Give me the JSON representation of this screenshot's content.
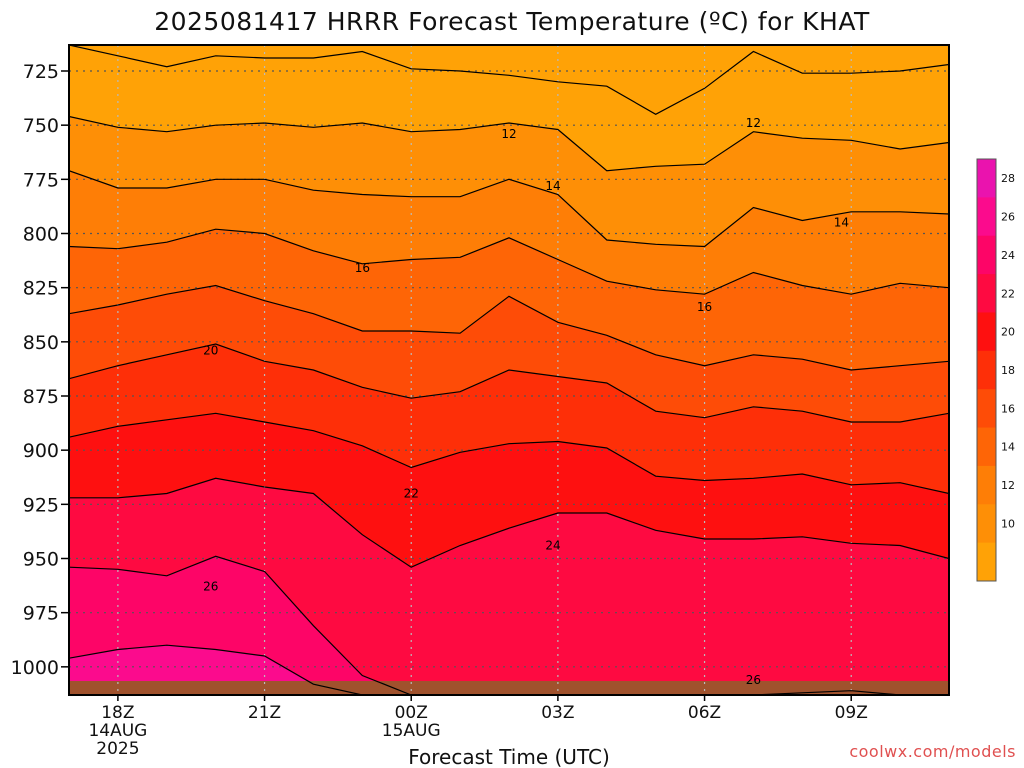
{
  "chart_data": {
    "type": "heatmap",
    "title": "2025081417 HRRR Forecast Temperature (ºC) for KHAT",
    "xlabel": "Forecast Time (UTC)",
    "ylabel": "",
    "y_axis": {
      "unit": "hPa",
      "inverted": true,
      "range": [
        1013,
        713
      ],
      "ticks": [
        "725",
        "750",
        "775",
        "800",
        "825",
        "850",
        "875",
        "900",
        "925",
        "950",
        "975",
        "1000"
      ]
    },
    "x_axis": {
      "range_hours": [
        17,
        35
      ],
      "ticks": [
        {
          "hour": 18,
          "lines": [
            "18Z",
            "14AUG",
            "2025"
          ]
        },
        {
          "hour": 21,
          "lines": [
            "21Z"
          ]
        },
        {
          "hour": 24,
          "lines": [
            "00Z",
            "15AUG"
          ]
        },
        {
          "hour": 27,
          "lines": [
            "03Z"
          ]
        },
        {
          "hour": 30,
          "lines": [
            "06Z"
          ]
        },
        {
          "hour": 33,
          "lines": [
            "09Z"
          ]
        }
      ]
    },
    "grid": true,
    "surface_band_color": "#a0522d",
    "levels": [
      {
        "t": 28,
        "color": "#ea13ae"
      },
      {
        "t": 26,
        "color": "#fb0b8d"
      },
      {
        "t": 24,
        "color": "#fd0567"
      },
      {
        "t": 22,
        "color": "#fe0a41"
      },
      {
        "t": 20,
        "color": "#fe1010"
      },
      {
        "t": 18,
        "color": "#fe2f08"
      },
      {
        "t": 16,
        "color": "#fe4c07"
      },
      {
        "t": 14,
        "color": "#fe6506"
      },
      {
        "t": 12,
        "color": "#fe7e06"
      },
      {
        "t": 10,
        "color": "#fe8f06"
      },
      {
        "t": 8,
        "color": "#ffa206"
      }
    ],
    "hours": [
      17,
      18,
      19,
      20,
      21,
      22,
      23,
      24,
      25,
      26,
      27,
      28,
      29,
      30,
      31,
      32,
      33,
      34,
      35
    ],
    "isotherms": [
      {
        "t": 8,
        "p": [
          713,
          718,
          723,
          718,
          719,
          719,
          716,
          724,
          725,
          727,
          730,
          732,
          745,
          733,
          716,
          726,
          726,
          725,
          722
        ]
      },
      {
        "t": 10,
        "p": [
          746,
          751,
          753,
          750,
          749,
          751,
          749,
          753,
          752,
          749,
          752,
          771,
          769,
          768,
          753,
          756,
          757,
          761,
          758
        ]
      },
      {
        "t": 12,
        "p": [
          771,
          779,
          779,
          775,
          775,
          780,
          782,
          783,
          783,
          775,
          782,
          803,
          805,
          806,
          788,
          794,
          790,
          790,
          791
        ]
      },
      {
        "t": 14,
        "p": [
          806,
          807,
          804,
          798,
          800,
          808,
          814,
          812,
          811,
          802,
          812,
          822,
          826,
          828,
          818,
          824,
          828,
          823,
          825
        ]
      },
      {
        "t": 16,
        "p": [
          837,
          833,
          828,
          824,
          831,
          837,
          845,
          845,
          846,
          829,
          841,
          847,
          856,
          861,
          856,
          858,
          863,
          861,
          859
        ]
      },
      {
        "t": 18,
        "p": [
          867,
          861,
          856,
          851,
          859,
          863,
          871,
          876,
          873,
          863,
          866,
          869,
          882,
          885,
          880,
          882,
          887,
          887,
          883
        ]
      },
      {
        "t": 20,
        "p": [
          894,
          889,
          886,
          883,
          887,
          891,
          898,
          908,
          901,
          897,
          896,
          899,
          912,
          914,
          913,
          911,
          916,
          915,
          920
        ]
      },
      {
        "t": 22,
        "p": [
          922,
          922,
          920,
          913,
          917,
          920,
          939,
          954,
          944,
          936,
          929,
          929,
          937,
          941,
          941,
          940,
          943,
          944,
          950
        ]
      },
      {
        "t": 24,
        "p": [
          954,
          955,
          958,
          949,
          956,
          981,
          1004,
          1013,
          1013,
          1013,
          1013,
          1013,
          1013,
          1013,
          1013,
          1012,
          1011,
          1013,
          1013
        ]
      },
      {
        "t": 26,
        "p": [
          996,
          992,
          990,
          992,
          995,
          1008,
          1013,
          1013,
          1013,
          1013,
          1013,
          1013,
          1013,
          1013,
          1013,
          1013,
          1013,
          1013,
          1013
        ]
      },
      {
        "t": 28,
        "p": [
          1013,
          1013,
          1013,
          1013,
          1013,
          1013,
          1013,
          1013,
          1013,
          1013,
          1013,
          1013,
          1013,
          1013,
          1013,
          1013,
          1013,
          1013,
          1013
        ]
      }
    ],
    "contour_labels": [
      {
        "text": "12",
        "hour": 26.0,
        "p": 754
      },
      {
        "text": "12",
        "hour": 31.0,
        "p": 749
      },
      {
        "text": "14",
        "hour": 26.9,
        "p": 778
      },
      {
        "text": "14",
        "hour": 32.8,
        "p": 795
      },
      {
        "text": "16",
        "hour": 23.0,
        "p": 816
      },
      {
        "text": "16",
        "hour": 30.0,
        "p": 834
      },
      {
        "text": "20",
        "hour": 19.9,
        "p": 854
      },
      {
        "text": "22",
        "hour": 24.0,
        "p": 920
      },
      {
        "text": "24",
        "hour": 26.9,
        "p": 944
      },
      {
        "text": "26",
        "hour": 19.9,
        "p": 963
      },
      {
        "text": "26",
        "hour": 31.0,
        "p": 1006
      }
    ],
    "colorbar": {
      "ticks": [
        "10",
        "12",
        "14",
        "16",
        "18",
        "20",
        "22",
        "24",
        "26",
        "28"
      ]
    }
  },
  "credit": "coolwx.com/models"
}
